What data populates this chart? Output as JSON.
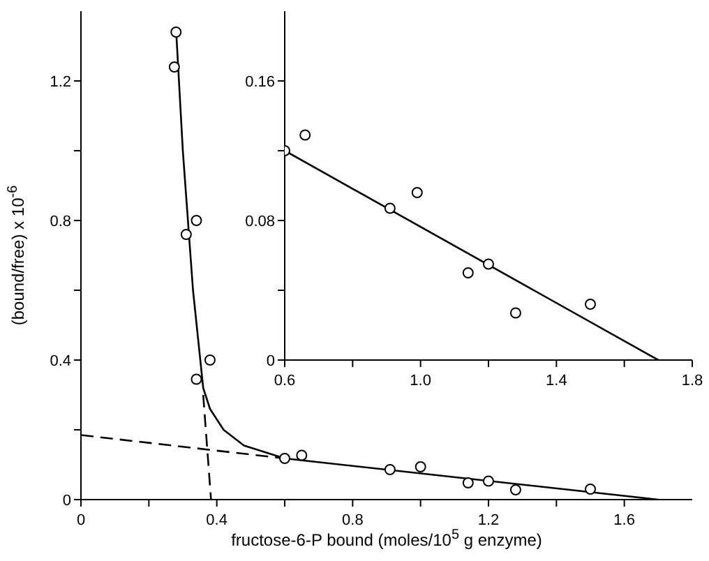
{
  "chart_data": [
    {
      "type": "scatter",
      "xlabel": "fructose-6-P bound (moles/10$^{5}$ g enzyme)",
      "ylabel": "(bound/free) x 10$^{-6}$",
      "xlim": [
        0,
        1.8
      ],
      "ylim": [
        0,
        1.4
      ],
      "xticks": [
        0,
        {
          "value": 0.2,
          "label": null
        },
        0.4,
        {
          "value": 0.6,
          "label": null
        },
        0.8,
        {
          "value": 1.0,
          "label": null
        },
        1.2,
        {
          "value": 1.4,
          "label": null
        },
        1.6
      ],
      "yticks": [
        0,
        {
          "value": 0.2,
          "label": null
        },
        0.4,
        {
          "value": 0.6,
          "label": null
        },
        0.8,
        {
          "value": 1.0,
          "label": null
        },
        1.2
      ],
      "grid": false,
      "legend": false,
      "series": [
        {
          "marker": "circle",
          "color": "#000000",
          "x": [
            0.28,
            0.275,
            0.31,
            0.34,
            0.34,
            0.38,
            0.6,
            0.65,
            0.91,
            1.0,
            1.14,
            1.2,
            1.28,
            1.5
          ],
          "values": [
            1.34,
            1.24,
            0.76,
            0.8,
            0.345,
            0.4,
            0.118,
            0.127,
            0.086,
            0.094,
            0.048,
            0.053,
            0.028,
            0.03
          ]
        },
        {
          "type": "line",
          "marker": "none",
          "color": "#000000",
          "line_style": "solid",
          "x": [
            0.28,
            0.3,
            0.33,
            0.36,
            0.38,
            0.42,
            0.48,
            0.6,
            1.7
          ],
          "values": [
            1.35,
            1.0,
            0.6,
            0.32,
            0.26,
            0.2,
            0.155,
            0.118,
            0
          ]
        },
        {
          "type": "line",
          "marker": "none",
          "color": "#000000",
          "line_style": "dashed",
          "x": [
            0,
            0.6
          ],
          "values": [
            0.185,
            0.118
          ]
        },
        {
          "type": "line",
          "marker": "none",
          "color": "#000000",
          "line_style": "dashed",
          "x": [
            0.36,
            0.383
          ],
          "values": [
            0.3,
            0
          ]
        }
      ]
    },
    {
      "type": "scatter",
      "xlim": [
        0.6,
        1.8
      ],
      "ylim": [
        0,
        0.2
      ],
      "xticks": [
        0.6,
        {
          "value": 0.8,
          "label": null
        },
        {
          "value": 1.0,
          "label": "1.0"
        },
        {
          "value": 1.2,
          "label": null
        },
        1.4,
        {
          "value": 1.6,
          "label": null
        },
        1.8
      ],
      "yticks": [
        0,
        {
          "value": 0.04,
          "label": null
        },
        0.08,
        {
          "value": 0.12,
          "label": null
        },
        0.16
      ],
      "grid": false,
      "legend": false,
      "series": [
        {
          "marker": "circle",
          "color": "#000000",
          "x": [
            0.6,
            0.66,
            0.91,
            0.99,
            1.14,
            1.2,
            1.28,
            1.5
          ],
          "values": [
            0.12,
            0.129,
            0.087,
            0.096,
            0.05,
            0.055,
            0.027,
            0.032
          ]
        },
        {
          "type": "line",
          "marker": "none",
          "color": "#000000",
          "line_style": "solid",
          "x": [
            0.6,
            1.7
          ],
          "values": [
            0.12,
            0
          ]
        }
      ]
    }
  ]
}
